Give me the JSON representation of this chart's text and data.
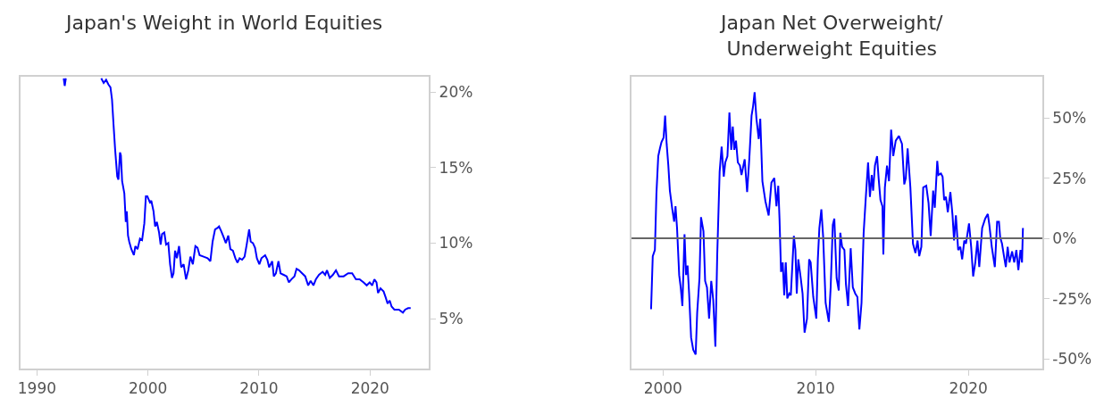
{
  "chart_data": [
    {
      "type": "line",
      "title": "Japan's Weight in World Equities",
      "xlim": [
        1988.5,
        2025.3
      ],
      "xticks": [
        1990,
        2000,
        2010,
        2020
      ],
      "ylim": [
        1.7,
        21
      ],
      "yticks": [
        {
          "value": 5,
          "label": "5%"
        },
        {
          "value": 10,
          "label": "10%"
        },
        {
          "value": 15,
          "label": "15%"
        },
        {
          "value": 20,
          "label": "20%"
        }
      ],
      "marker": "none",
      "line_style": "solid",
      "series": [
        {
          "color": "#0000ff",
          "x": [
            1992.41,
            1992.5,
            1992.6,
            1994,
            1995.79,
            1996.01,
            1996.23,
            1996.43,
            1996.62,
            1996.76,
            1996.9,
            1997.04,
            1997.23,
            1997.34,
            1997.48,
            1997.56,
            1997.67,
            1997.87,
            1998.0,
            1998.09,
            1998.2,
            1998.31,
            1998.5,
            1998.73,
            1998.86,
            1999.06,
            1999.28,
            1999.47,
            1999.67,
            1999.81,
            1999.94,
            2000.17,
            2000.3,
            2000.5,
            2000.64,
            2000.8,
            2001.0,
            2001.14,
            2001.27,
            2001.47,
            2001.63,
            2001.83,
            2001.99,
            2002.16,
            2002.3,
            2002.44,
            2002.6,
            2002.8,
            2002.99,
            2003.21,
            2003.43,
            2003.63,
            2003.82,
            2004.04,
            2004.27,
            2004.46,
            2004.65,
            2005.01,
            2005.37,
            2005.62,
            2005.82,
            2006.04,
            2006.26,
            2006.4,
            2006.59,
            2006.81,
            2007.01,
            2007.23,
            2007.42,
            2007.65,
            2007.87,
            2008.06,
            2008.25,
            2008.48,
            2008.7,
            2008.89,
            2009.11,
            2009.25,
            2009.45,
            2009.64,
            2009.81,
            2010.03,
            2010.22,
            2010.55,
            2010.75,
            2010.91,
            2011.19,
            2011.33,
            2011.52,
            2011.75,
            2011.94,
            2012.22,
            2012.49,
            2012.69,
            2012.91,
            2013.19,
            2013.38,
            2013.6,
            2013.88,
            2014.16,
            2014.43,
            2014.65,
            2014.9,
            2015.12,
            2015.4,
            2015.73,
            2015.96,
            2016.12,
            2016.37,
            2016.65,
            2016.93,
            2017.2,
            2017.62,
            2018.03,
            2018.39,
            2018.73,
            2019.06,
            2019.42,
            2019.7,
            2019.97,
            2020.19,
            2020.39,
            2020.58,
            2020.72,
            2020.94,
            2021.22,
            2021.41,
            2021.58,
            2021.77,
            2021.94,
            2022.19,
            2022.6,
            2022.96,
            2023.16,
            2023.43,
            2023.66
          ],
          "values": [
            20.9,
            20.4,
            20.9,
            null,
            20.9,
            20.6,
            20.8,
            20.5,
            20.3,
            19.5,
            17.8,
            16.2,
            14.4,
            14.2,
            16.0,
            15.8,
            14.1,
            13.3,
            11.4,
            12.1,
            10.5,
            10.1,
            9.6,
            9.2,
            9.8,
            9.6,
            10.3,
            10.2,
            11.3,
            13.1,
            13.1,
            12.7,
            12.8,
            12.1,
            11.1,
            11.4,
            10.7,
            9.9,
            10.6,
            10.7,
            9.9,
            10.0,
            8.6,
            7.7,
            8.0,
            9.5,
            9.0,
            9.8,
            8.4,
            8.6,
            7.6,
            8.2,
            9.1,
            8.6,
            9.8,
            9.7,
            9.2,
            9.1,
            9.0,
            8.8,
            10.1,
            10.9,
            11.0,
            11.1,
            10.8,
            10.4,
            10.0,
            10.5,
            9.6,
            9.5,
            9.0,
            8.7,
            9.0,
            8.9,
            9.1,
            9.9,
            10.9,
            10.1,
            10.0,
            9.7,
            9.0,
            8.6,
            9.0,
            9.2,
            8.9,
            8.4,
            8.8,
            7.8,
            8.0,
            8.8,
            8.0,
            7.9,
            7.8,
            7.4,
            7.6,
            7.8,
            8.3,
            8.2,
            8.0,
            7.8,
            7.2,
            7.5,
            7.2,
            7.6,
            7.9,
            8.1,
            7.9,
            8.2,
            7.7,
            7.9,
            8.2,
            7.8,
            7.8,
            8.0,
            8.0,
            7.6,
            7.6,
            7.4,
            7.2,
            7.4,
            7.2,
            7.6,
            7.4,
            6.7,
            7.0,
            6.8,
            6.4,
            6.0,
            6.2,
            5.8,
            5.6,
            5.6,
            5.4,
            5.6,
            5.7,
            5.7
          ]
        }
      ]
    },
    {
      "type": "line",
      "title": "Japan Net Overweight/\nUnderweight Equities",
      "xlim": [
        1997.94,
        2024.84
      ],
      "xticks": [
        2000,
        2010,
        2020
      ],
      "ylim": [
        -54,
        67
      ],
      "yticks": [
        {
          "value": -50,
          "label": "-50%"
        },
        {
          "value": -25,
          "label": "-25%"
        },
        {
          "value": 0,
          "label": "0%"
        },
        {
          "value": 25,
          "label": "25%"
        },
        {
          "value": 50,
          "label": "50%"
        }
      ],
      "marker": "none",
      "line_style": "solid",
      "ref_lines": [
        {
          "axis": "y",
          "value": 0,
          "color": "#666666"
        }
      ],
      "series": [
        {
          "color": "#0000ff",
          "x": [
            1999.22,
            1999.33,
            1999.47,
            1999.57,
            1999.69,
            1999.8,
            1999.9,
            2000.04,
            2000.14,
            2000.24,
            2000.35,
            2000.45,
            2000.61,
            2000.73,
            2000.82,
            2000.92,
            2001.06,
            2001.16,
            2001.27,
            2001.41,
            2001.51,
            2001.61,
            2001.71,
            2001.84,
            2001.98,
            2002.14,
            2002.24,
            2002.39,
            2002.49,
            2002.65,
            2002.76,
            2002.88,
            2003.02,
            2003.16,
            2003.29,
            2003.43,
            2003.55,
            2003.71,
            2003.84,
            2003.98,
            2004.08,
            2004.22,
            2004.35,
            2004.47,
            2004.57,
            2004.67,
            2004.78,
            2004.9,
            2005.04,
            2005.14,
            2005.35,
            2005.51,
            2005.65,
            2005.8,
            2005.9,
            2006.0,
            2006.12,
            2006.27,
            2006.37,
            2006.51,
            2006.71,
            2006.92,
            2007.1,
            2007.29,
            2007.43,
            2007.55,
            2007.63,
            2007.73,
            2007.84,
            2007.94,
            2008.04,
            2008.14,
            2008.27,
            2008.37,
            2008.47,
            2008.57,
            2008.67,
            2008.76,
            2008.86,
            2009.02,
            2009.14,
            2009.27,
            2009.43,
            2009.57,
            2009.67,
            2009.84,
            2010.04,
            2010.14,
            2010.24,
            2010.37,
            2010.49,
            2010.65,
            2010.86,
            2010.98,
            2011.12,
            2011.22,
            2011.37,
            2011.51,
            2011.61,
            2011.73,
            2011.88,
            2011.98,
            2012.12,
            2012.29,
            2012.43,
            2012.59,
            2012.73,
            2012.86,
            2013.0,
            2013.14,
            2013.27,
            2013.43,
            2013.55,
            2013.67,
            2013.76,
            2013.88,
            2014.02,
            2014.12,
            2014.24,
            2014.37,
            2014.43,
            2014.53,
            2014.67,
            2014.8,
            2014.94,
            2015.08,
            2015.24,
            2015.45,
            2015.65,
            2015.8,
            2015.9,
            2016.02,
            2016.2,
            2016.37,
            2016.53,
            2016.67,
            2016.78,
            2016.92,
            2017.04,
            2017.24,
            2017.39,
            2017.53,
            2017.69,
            2017.8,
            2017.96,
            2018.04,
            2018.2,
            2018.31,
            2018.41,
            2018.53,
            2018.65,
            2018.82,
            2018.96,
            2019.06,
            2019.18,
            2019.33,
            2019.47,
            2019.59,
            2019.73,
            2019.84,
            2020.04,
            2020.18,
            2020.31,
            2020.45,
            2020.59,
            2020.71,
            2020.9,
            2021.1,
            2021.27,
            2021.37,
            2021.53,
            2021.73,
            2021.88,
            2022.0,
            2022.08,
            2022.2,
            2022.33,
            2022.45,
            2022.57,
            2022.69,
            2022.86,
            2023.0,
            2023.14,
            2023.27,
            2023.41,
            2023.51,
            2023.57
          ],
          "values": [
            -29.4,
            -7.4,
            -4.8,
            18.5,
            34.1,
            37.3,
            39.9,
            41.8,
            50.9,
            39.2,
            30.2,
            19.8,
            12.0,
            6.9,
            13.3,
            4.3,
            -15.2,
            -20.3,
            -28.1,
            1.7,
            -15.2,
            -11.3,
            -22.9,
            -41.1,
            -46.2,
            -48.2,
            -30.7,
            -16.5,
            8.8,
            3.0,
            -17.7,
            -20.3,
            -33.3,
            -17.7,
            -25.5,
            -44.9,
            -7.4,
            27.6,
            38.0,
            25.6,
            31.5,
            34.1,
            52.2,
            36.7,
            46.4,
            36.7,
            40.5,
            31.5,
            30.2,
            26.3,
            32.8,
            19.2,
            32.8,
            50.9,
            54.8,
            60.6,
            49.6,
            41.2,
            49.6,
            23.7,
            15.3,
            9.5,
            23.1,
            25.0,
            13.3,
            21.8,
            8.2,
            -13.9,
            -10.0,
            -23.6,
            -10.0,
            -24.9,
            -22.9,
            -23.6,
            -11.3,
            1.0,
            -4.8,
            -22.9,
            -8.7,
            -16.5,
            -22.9,
            -39.1,
            -33.3,
            -8.7,
            -10.0,
            -24.3,
            -33.3,
            -8.7,
            4.3,
            12.0,
            0.4,
            -26.8,
            -34.6,
            -20.3,
            5.6,
            8.2,
            -16.5,
            -21.6,
            2.3,
            -3.5,
            -4.8,
            -19.0,
            -28.1,
            -4.1,
            -20.3,
            -22.9,
            -24.3,
            -37.8,
            -26.8,
            2.3,
            15.9,
            31.5,
            17.2,
            26.3,
            19.8,
            30.2,
            34.1,
            25.0,
            15.9,
            13.3,
            -6.7,
            21.1,
            30.2,
            23.7,
            45.1,
            34.1,
            40.5,
            42.5,
            39.2,
            22.4,
            25.0,
            37.3,
            21.1,
            -2.2,
            -6.1,
            -0.9,
            -7.4,
            -3.5,
            21.1,
            21.8,
            14.6,
            1.0,
            19.8,
            12.7,
            32.1,
            26.3,
            26.9,
            25.6,
            15.9,
            17.2,
            10.8,
            19.2,
            9.5,
            -0.9,
            9.5,
            -4.8,
            -3.5,
            -8.7,
            -0.9,
            -2.2,
            6.2,
            -3.5,
            -15.8,
            -10.0,
            -0.9,
            -11.9,
            4.3,
            8.2,
            10.1,
            5.6,
            -3.5,
            -11.9,
            6.9,
            6.9,
            0.4,
            -2.2,
            -7.4,
            -11.9,
            -3.5,
            -10.0,
            -5.4,
            -10.0,
            -4.8,
            -13.2,
            -4.8,
            -10.0,
            4.3
          ]
        }
      ]
    }
  ]
}
